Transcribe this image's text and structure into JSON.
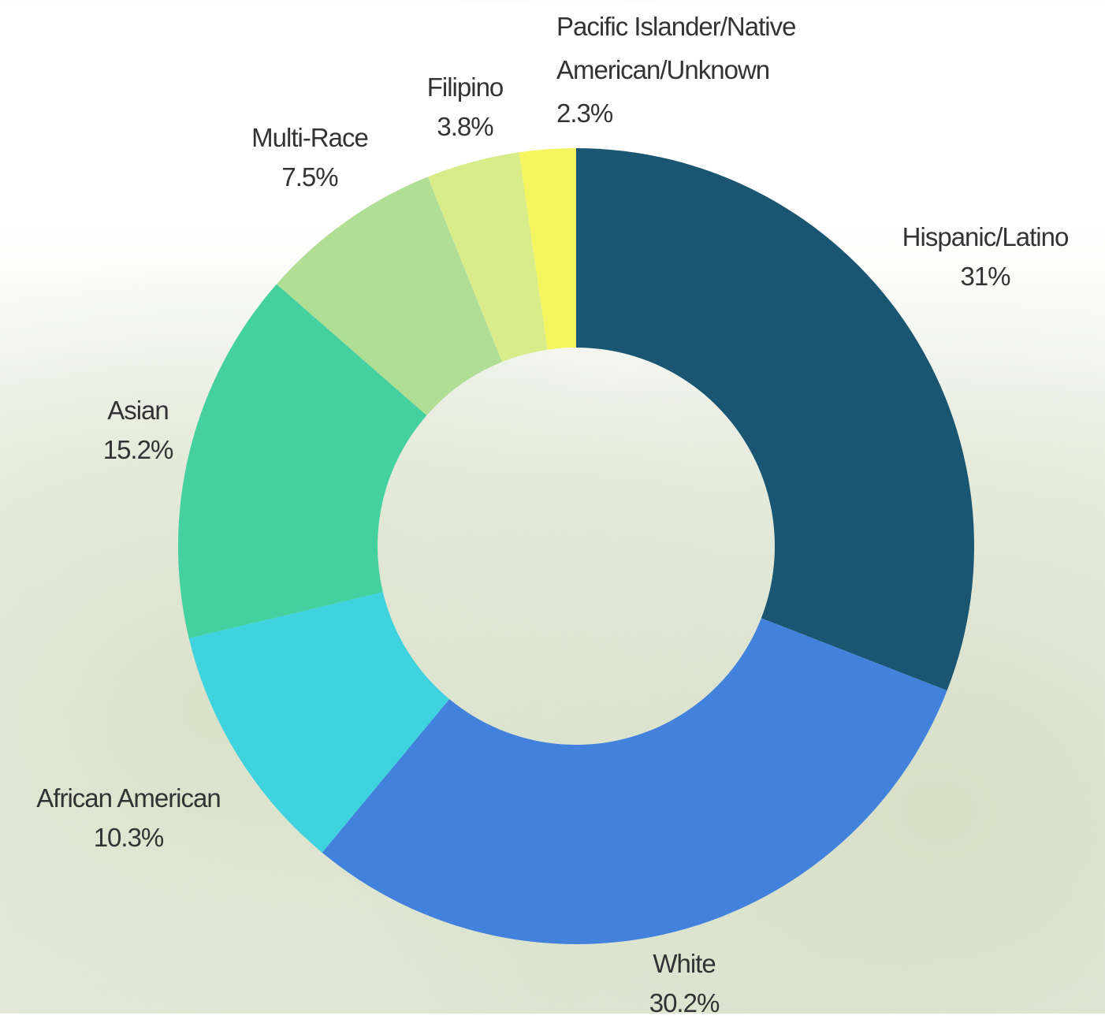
{
  "chart_data": {
    "type": "pie",
    "categories": [
      "Hispanic/Latino",
      "White",
      "African American",
      "Asian",
      "Multi-Race",
      "Filipino",
      "Pacific Islander/Native American/Unknown"
    ],
    "values": [
      31,
      30.2,
      10.3,
      15.2,
      7.5,
      3.8,
      2.3
    ],
    "value_labels": [
      "31%",
      "30.2%",
      "10.3%",
      "15.2%",
      "7.5%",
      "3.8%",
      "2.3%"
    ],
    "colors": [
      "#1a5672",
      "#4282dc",
      "#3fd3e0",
      "#45d09f",
      "#b1de95",
      "#d8ec8a",
      "#f5f560"
    ]
  }
}
